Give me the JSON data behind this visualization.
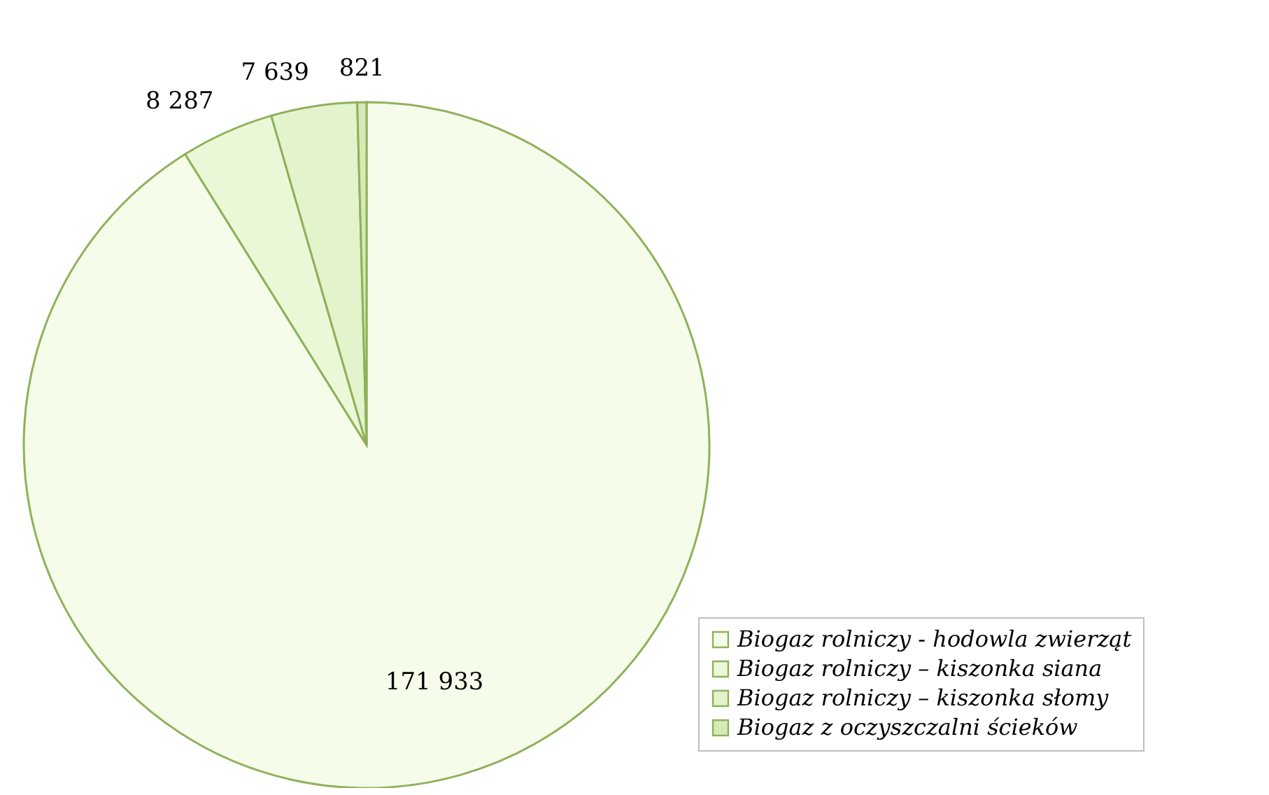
{
  "chart_data": {
    "type": "pie",
    "categories": [
      "Biogaz rolniczy - hodowla zwierząt",
      "Biogaz rolniczy – kiszonka siana",
      "Biogaz rolniczy – kiszonka słomy",
      "Biogaz z oczyszczalni ścieków"
    ],
    "values": [
      171933,
      8287,
      7639,
      821
    ],
    "colors": [
      "#f5fce9",
      "#ebf8d8",
      "#e3f3cc",
      "#d6eab8"
    ],
    "value_labels": [
      "171 933",
      "8 287",
      "7 639",
      "821"
    ],
    "legend": "bottom right"
  }
}
